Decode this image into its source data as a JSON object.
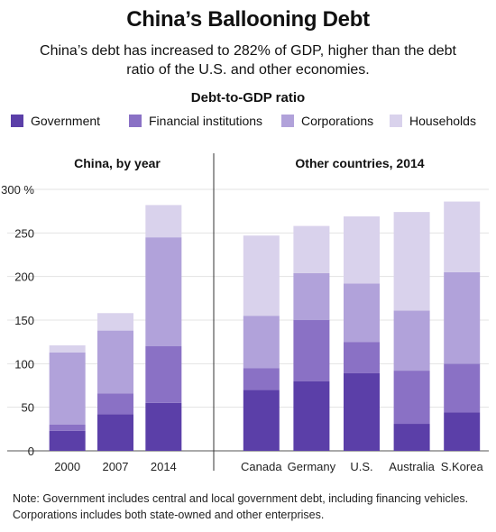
{
  "title": "China’s Ballooning Debt",
  "subtitle": "China’s debt has increased to 282% of GDP, higher than the debt ratio of the U.S. and other economies.",
  "chart_label": "Debt-to-GDP ratio",
  "legend": [
    {
      "name": "Government",
      "color": "#5b3fa8"
    },
    {
      "name": "Financial institutions",
      "color": "#8a71c5"
    },
    {
      "name": "Corporations",
      "color": "#b1a2da"
    },
    {
      "name": "Households",
      "color": "#d9d2ec"
    }
  ],
  "note": "Note: Government includes central and local government debt, including financing vehicles. Corporations includes both state-owned and other enterprises.",
  "chart_data": [
    {
      "type": "bar",
      "stacked": true,
      "panel_title": "China, by year",
      "categories": [
        "2000",
        "2007",
        "2014"
      ],
      "series": [
        {
          "name": "Government",
          "values": [
            23,
            42,
            55
          ]
        },
        {
          "name": "Financial institutions",
          "values": [
            7,
            24,
            65
          ]
        },
        {
          "name": "Corporations",
          "values": [
            83,
            72,
            125
          ]
        },
        {
          "name": "Households",
          "values": [
            8,
            20,
            37
          ]
        }
      ],
      "ylim": [
        0,
        300
      ],
      "yticks": [
        "0",
        "50",
        "100",
        "150",
        "200",
        "250",
        "300 %"
      ],
      "grid": true
    },
    {
      "type": "bar",
      "stacked": true,
      "panel_title": "Other countries, 2014",
      "categories": [
        "Canada",
        "Germany",
        "U.S.",
        "Australia",
        "S.Korea"
      ],
      "series": [
        {
          "name": "Government",
          "values": [
            70,
            80,
            89,
            31,
            44
          ]
        },
        {
          "name": "Financial institutions",
          "values": [
            25,
            70,
            36,
            61,
            56
          ]
        },
        {
          "name": "Corporations",
          "values": [
            60,
            54,
            67,
            69,
            105
          ]
        },
        {
          "name": "Households",
          "values": [
            92,
            54,
            77,
            113,
            81
          ]
        }
      ],
      "ylim": [
        0,
        300
      ],
      "grid": true
    }
  ]
}
